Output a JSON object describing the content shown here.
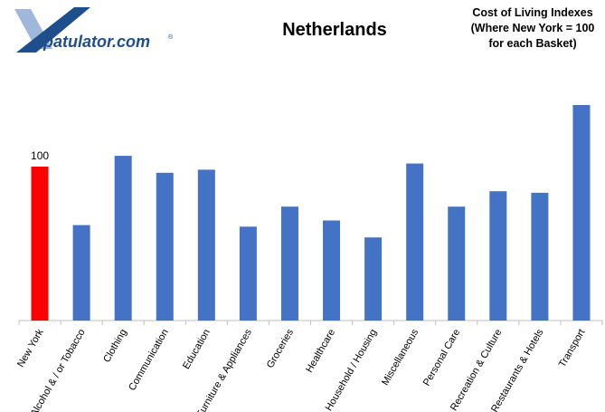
{
  "logo": {
    "brand_text": "patulator.com",
    "registered_mark": "®",
    "colors": {
      "blue": "#1f4e8c",
      "light": "#9fb7d9"
    }
  },
  "title": "Netherlands",
  "subtitle_lines": [
    "Cost of Living Indexes",
    "(Where New York = 100",
    "for each Basket)"
  ],
  "chart_data": {
    "type": "bar",
    "title": "Netherlands",
    "categories": [
      "New York",
      "Alcohol & / or Tobacco",
      "Clothing",
      "Communication",
      "Education",
      "Furniture & Appliances",
      "Groceries",
      "Healthcare",
      "Household / Housing",
      "Miscellaneous",
      "Personal Care",
      "Recreation & Culture",
      "Restaurants & Hotels",
      "Transport"
    ],
    "values": [
      100,
      62,
      107,
      96,
      98,
      61,
      74,
      65,
      54,
      102,
      74,
      84,
      83,
      140
    ],
    "ylim": [
      0,
      150
    ],
    "data_labels": [
      {
        "category": "New York",
        "text": "100"
      }
    ],
    "colors": {
      "highlight": "#ff0000",
      "default": "#4472c4",
      "axis": "#bfbfbf"
    },
    "grid": false
  }
}
